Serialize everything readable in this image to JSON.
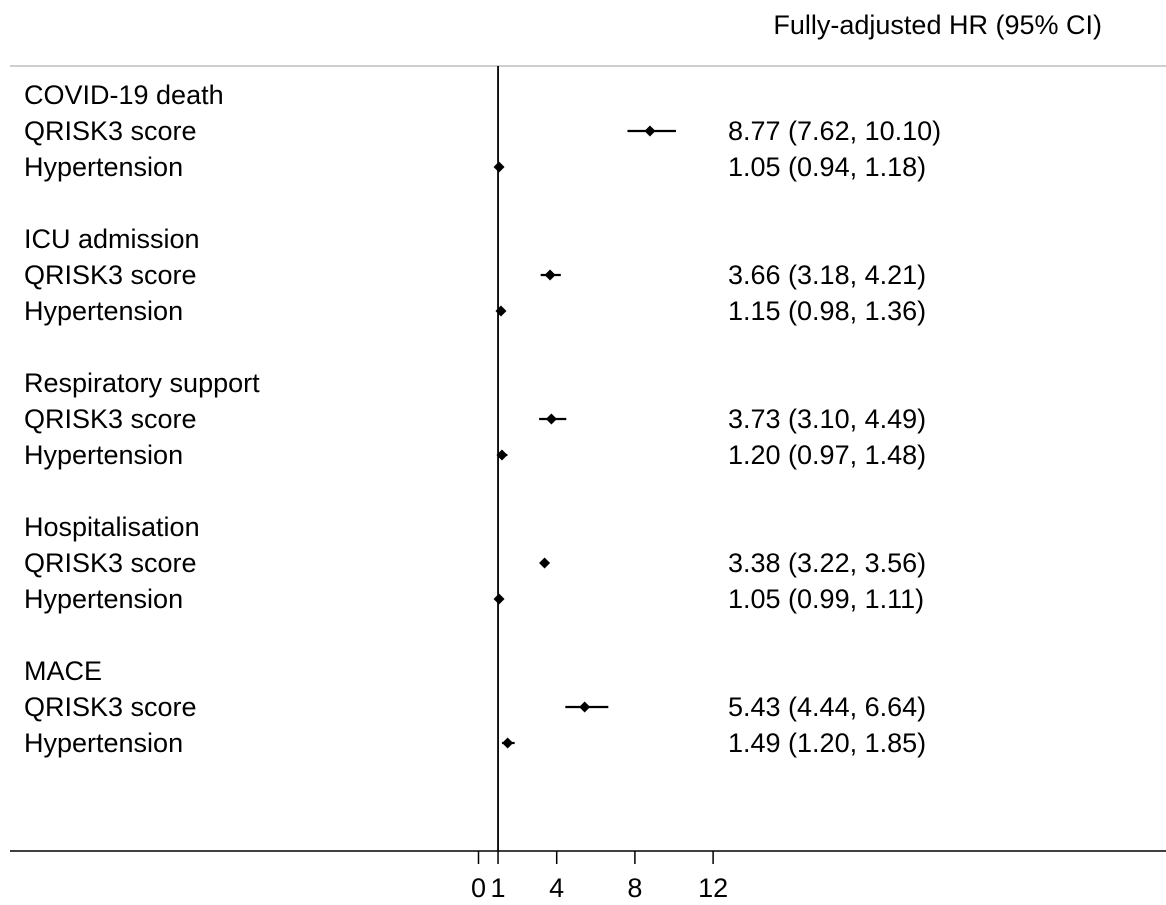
{
  "chart_data": {
    "type": "forest",
    "header": "Fully-adjusted HR (95% CI)",
    "reference_line": 1,
    "xticks": [
      0,
      1,
      4,
      8,
      12
    ],
    "xlim": [
      0,
      12
    ],
    "groups": [
      {
        "outcome": "COVID-19 death",
        "rows": [
          {
            "label": "QRISK3 score",
            "hr": 8.77,
            "lo": 7.62,
            "hi": 10.1,
            "text": "8.77 (7.62, 10.10)"
          },
          {
            "label": "Hypertension",
            "hr": 1.05,
            "lo": 0.94,
            "hi": 1.18,
            "text": "1.05 (0.94, 1.18)"
          }
        ]
      },
      {
        "outcome": "ICU admission",
        "rows": [
          {
            "label": "QRISK3 score",
            "hr": 3.66,
            "lo": 3.18,
            "hi": 4.21,
            "text": "3.66 (3.18, 4.21)"
          },
          {
            "label": "Hypertension",
            "hr": 1.15,
            "lo": 0.98,
            "hi": 1.36,
            "text": "1.15 (0.98, 1.36)"
          }
        ]
      },
      {
        "outcome": "Respiratory support",
        "rows": [
          {
            "label": "QRISK3 score",
            "hr": 3.73,
            "lo": 3.1,
            "hi": 4.49,
            "text": "3.73 (3.10, 4.49)"
          },
          {
            "label": "Hypertension",
            "hr": 1.2,
            "lo": 0.97,
            "hi": 1.48,
            "text": "1.20 (0.97, 1.48)"
          }
        ]
      },
      {
        "outcome": "Hospitalisation",
        "rows": [
          {
            "label": "QRISK3 score",
            "hr": 3.38,
            "lo": 3.22,
            "hi": 3.56,
            "text": "3.38 (3.22, 3.56)"
          },
          {
            "label": "Hypertension",
            "hr": 1.05,
            "lo": 0.99,
            "hi": 1.11,
            "text": "1.05 (0.99, 1.11)"
          }
        ]
      },
      {
        "outcome": "MACE",
        "rows": [
          {
            "label": "QRISK3 score",
            "hr": 5.43,
            "lo": 4.44,
            "hi": 6.64,
            "text": "5.43 (4.44, 6.64)"
          },
          {
            "label": "Hypertension",
            "hr": 1.49,
            "lo": 1.2,
            "hi": 1.85,
            "text": "1.49 (1.20, 1.85)"
          }
        ]
      }
    ]
  }
}
